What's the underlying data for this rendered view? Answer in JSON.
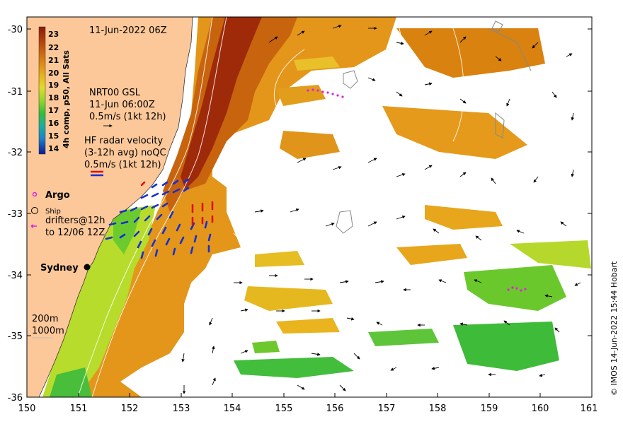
{
  "map": {
    "date_title": "11-Jun-2022 06Z",
    "colorbar": {
      "title": "4h comp, p50, All Sats",
      "ticks": [
        "23",
        "22",
        "21",
        "20",
        "19",
        "18",
        "17",
        "16",
        "15",
        "14"
      ],
      "colors": [
        "#8b1a0a",
        "#b24a0a",
        "#d77a10",
        "#e8a81a",
        "#e3d22a",
        "#b9e02a",
        "#5fcf2a",
        "#21b35a",
        "#1aa0c0",
        "#1a4fd0"
      ]
    },
    "legend": {
      "gsl_title": "NRT00 GSL",
      "gsl_time": "11-Jun 06:00Z",
      "gsl_scale": "0.5m/s (1kt 12h)",
      "hf_title": "HF radar velocity",
      "hf_sub": "(3-12h avg) noQC",
      "hf_scale": "0.5m/s (1kt 12h)",
      "argo": "Argo",
      "ship": "Ship",
      "drifters_1": "drifters@12h",
      "drifters_2": "to 12/06 12Z",
      "place": "Sydney",
      "contour_1": "200m",
      "contour_2": "1000m"
    },
    "x_ticks": [
      "150",
      "151",
      "152",
      "153",
      "154",
      "155",
      "156",
      "157",
      "158",
      "159",
      "160",
      "161"
    ],
    "y_ticks": [
      "-30",
      "-31",
      "-32",
      "-33",
      "-34",
      "-35",
      "-36"
    ],
    "credit": "© IMOS 14-Jun-2022 15:44 Hobart",
    "colors": {
      "land": "#fcc89a",
      "ocean": "#ffffff",
      "hot": "#a8320c",
      "warm": "#d7740e",
      "mid": "#e9a11c",
      "cool": "#e6cf28",
      "green": "#7ccf2e",
      "green2": "#2ab84a"
    }
  }
}
